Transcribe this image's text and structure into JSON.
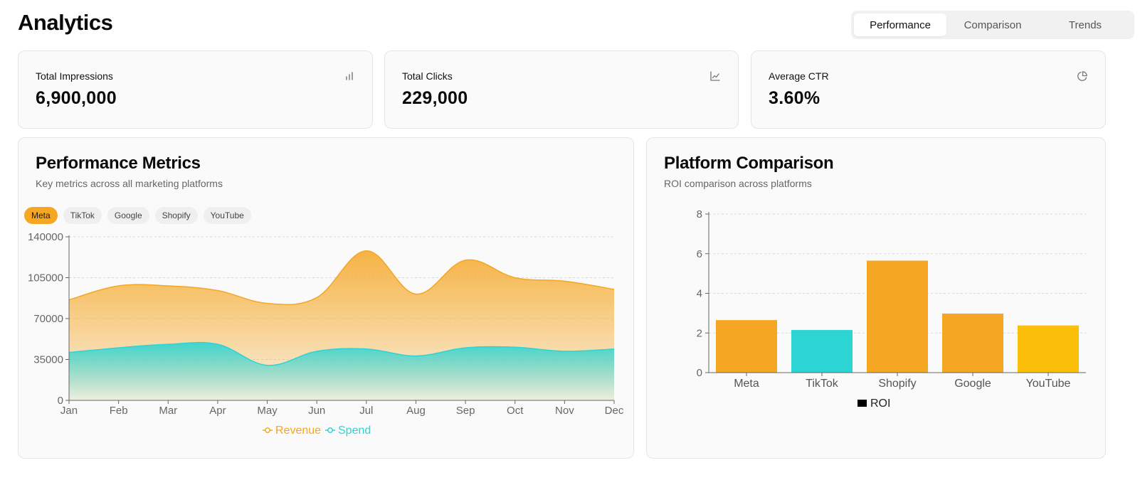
{
  "header": {
    "title": "Analytics",
    "tabs": [
      {
        "label": "Performance",
        "active": true
      },
      {
        "label": "Comparison",
        "active": false
      },
      {
        "label": "Trends",
        "active": false
      }
    ]
  },
  "stats": [
    {
      "label": "Total Impressions",
      "value": "6,900,000",
      "icon": "bar-chart-icon"
    },
    {
      "label": "Total Clicks",
      "value": "229,000",
      "icon": "line-chart-icon"
    },
    {
      "label": "Average CTR",
      "value": "3.60%",
      "icon": "pie-chart-icon"
    }
  ],
  "performance": {
    "title": "Performance Metrics",
    "subtitle": "Key metrics across all marketing platforms",
    "platforms": [
      {
        "label": "Meta",
        "active": true
      },
      {
        "label": "TikTok",
        "active": false
      },
      {
        "label": "Google",
        "active": false
      },
      {
        "label": "Shopify",
        "active": false
      },
      {
        "label": "YouTube",
        "active": false
      }
    ]
  },
  "comparison": {
    "title": "Platform Comparison",
    "subtitle": "ROI comparison across platforms"
  },
  "colors": {
    "revenue": "#f5a623",
    "spend": "#2dd4d4",
    "youtube": "#fbbf0a"
  },
  "chart_data": [
    {
      "type": "area",
      "categories": [
        "Jan",
        "Feb",
        "Mar",
        "Apr",
        "May",
        "Jun",
        "Jul",
        "Aug",
        "Sep",
        "Oct",
        "Nov",
        "Dec"
      ],
      "yticks": [
        0,
        35000,
        70000,
        105000,
        140000
      ],
      "ylim": [
        0,
        140000
      ],
      "grid": true,
      "legend": "bottom",
      "series": [
        {
          "name": "Revenue",
          "values": [
            86000,
            98000,
            98000,
            94000,
            83000,
            88000,
            128000,
            91000,
            120000,
            105000,
            102000,
            95000
          ]
        },
        {
          "name": "Spend",
          "values": [
            41000,
            45000,
            48000,
            48000,
            30000,
            42000,
            44000,
            38000,
            45000,
            45500,
            42000,
            44000
          ]
        }
      ]
    },
    {
      "type": "bar",
      "categories": [
        "Meta",
        "TikTok",
        "Shopify",
        "Google",
        "YouTube"
      ],
      "yticks": [
        0,
        2,
        4,
        6,
        8
      ],
      "ylim": [
        0,
        8
      ],
      "grid": true,
      "legend": "bottom",
      "series": [
        {
          "name": "ROI",
          "values": [
            2.65,
            2.15,
            5.65,
            2.98,
            2.38
          ]
        }
      ]
    }
  ]
}
